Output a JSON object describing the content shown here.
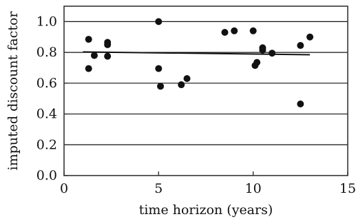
{
  "chart_data": {
    "type": "scatter",
    "xlabel": "time horizon (years)",
    "ylabel": "imputed discount factor",
    "xlim": [
      0,
      15
    ],
    "ylim": [
      0,
      1.1
    ],
    "x_ticks": [
      0,
      5,
      10,
      15
    ],
    "y_ticks": [
      0.0,
      0.2,
      0.4,
      0.6,
      0.8,
      1.0
    ],
    "x_tick_labels": [
      "0",
      "5",
      "10",
      "15"
    ],
    "y_tick_labels": [
      "0.0",
      "0.2",
      "0.4",
      "0.6",
      "0.8",
      "1.0"
    ],
    "grid": "horizontal lines at y ticks",
    "points": [
      {
        "x": 1.3,
        "y": 0.885
      },
      {
        "x": 1.3,
        "y": 0.695
      },
      {
        "x": 1.6,
        "y": 0.78
      },
      {
        "x": 2.3,
        "y": 0.865
      },
      {
        "x": 2.3,
        "y": 0.85
      },
      {
        "x": 2.3,
        "y": 0.775
      },
      {
        "x": 5.0,
        "y": 1.0
      },
      {
        "x": 5.0,
        "y": 0.695
      },
      {
        "x": 5.1,
        "y": 0.58
      },
      {
        "x": 6.2,
        "y": 0.59
      },
      {
        "x": 6.5,
        "y": 0.63
      },
      {
        "x": 8.5,
        "y": 0.93
      },
      {
        "x": 9.0,
        "y": 0.94
      },
      {
        "x": 10.0,
        "y": 0.94
      },
      {
        "x": 10.1,
        "y": 0.715
      },
      {
        "x": 10.2,
        "y": 0.735
      },
      {
        "x": 10.5,
        "y": 0.83
      },
      {
        "x": 10.5,
        "y": 0.815
      },
      {
        "x": 11.0,
        "y": 0.795
      },
      {
        "x": 12.5,
        "y": 0.845
      },
      {
        "x": 12.5,
        "y": 0.465
      },
      {
        "x": 13.0,
        "y": 0.9
      }
    ],
    "trend_line": {
      "x": [
        1.0,
        13.0
      ],
      "y": [
        0.803,
        0.785
      ]
    },
    "colors": {
      "points": "#111111",
      "line": "#111111",
      "grid": "#111111",
      "axes": "#333333"
    }
  }
}
